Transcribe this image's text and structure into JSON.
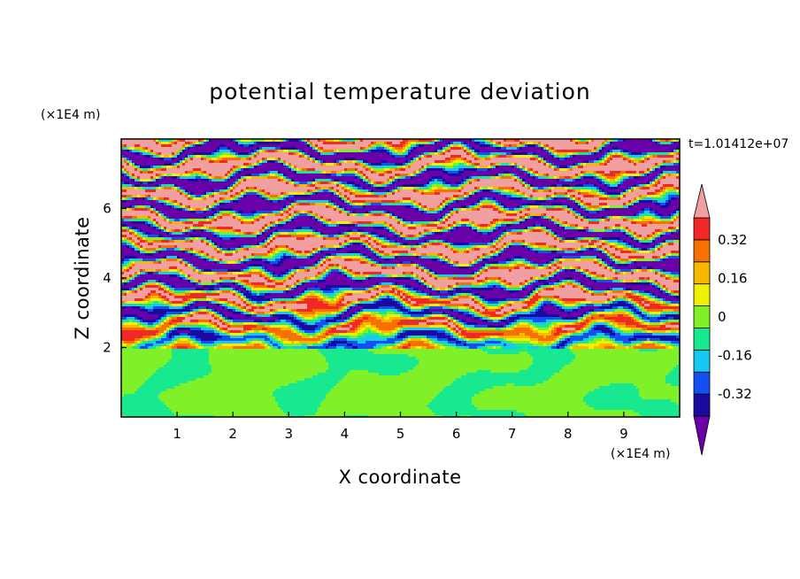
{
  "chart_data": {
    "type": "heatmap",
    "title": "potential temperature deviation",
    "xlabel": "X coordinate",
    "ylabel": "Z coordinate",
    "x_unit": "(×1E4 m)",
    "y_unit": "(×1E4 m)",
    "time_label": "t=1.01412e+07",
    "xlim": [
      0,
      10
    ],
    "ylim": [
      0,
      8
    ],
    "x_ticks": [
      "1",
      "2",
      "3",
      "4",
      "5",
      "6",
      "7",
      "8",
      "9"
    ],
    "y_ticks": [
      "2",
      "4",
      "6"
    ],
    "colorbar": {
      "levels": [
        -0.4,
        -0.32,
        -0.24,
        -0.16,
        -0.08,
        0,
        0.08,
        0.16,
        0.24,
        0.32,
        0.4
      ],
      "labels": [
        "0.32",
        "0.16",
        "0",
        "-0.16",
        "-0.32"
      ],
      "colors": [
        "#6a00a8",
        "#1a0aa0",
        "#1450f0",
        "#18c8f0",
        "#18e890",
        "#80f028",
        "#f0f000",
        "#f8b800",
        "#f87000",
        "#f02828",
        "#f0a0a0"
      ]
    },
    "fields": {
      "lower_layer": {
        "z_range": [
          0,
          2
        ],
        "values_range": [
          -0.08,
          0.08
        ]
      },
      "upper_layer": {
        "z_range": [
          2,
          8
        ],
        "values_range": [
          -0.4,
          0.4
        ]
      }
    }
  }
}
